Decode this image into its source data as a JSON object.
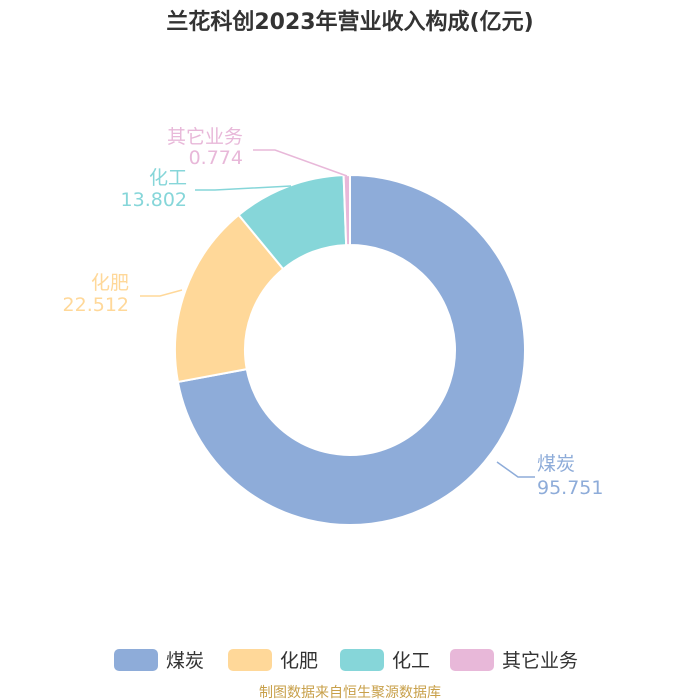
{
  "chart_data": {
    "type": "pie",
    "title": "兰花科创2023年营业收入构成(亿元)",
    "slices": [
      {
        "name": "煤炭",
        "value": 95.751,
        "label": "95.751",
        "color": "#8eacd9"
      },
      {
        "name": "化肥",
        "value": 22.512,
        "label": "22.512",
        "color": "#ffd899"
      },
      {
        "name": "化工",
        "value": 13.802,
        "label": "13.802",
        "color": "#86d6d9"
      },
      {
        "name": "其它业务",
        "value": 0.774,
        "label": "0.774",
        "color": "#e8b8d9"
      }
    ],
    "legend": [
      "煤炭",
      "化肥",
      "化工",
      "其它业务"
    ],
    "legend_position": "bottom",
    "donut": true
  },
  "source_note": "制图数据来自恒生聚源数据库"
}
